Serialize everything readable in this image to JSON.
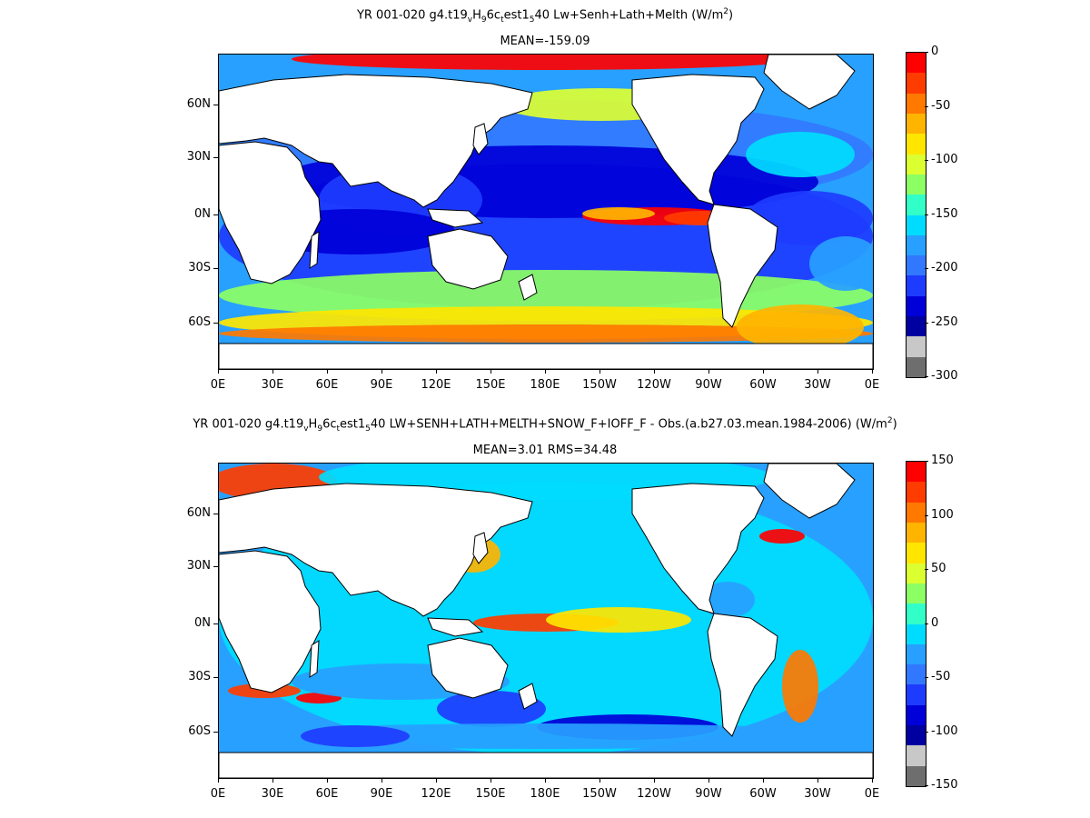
{
  "panel1": {
    "title_parts": [
      "YR 001-020 g4.t19",
      "v",
      "H",
      "9",
      "6c",
      "t",
      "est1",
      "5",
      "40 Lw+Senh+Lath+Melth (W/m",
      "2",
      ")"
    ],
    "mean_text": "MEAN=-159.09",
    "colorbar": {
      "colors": [
        "#6e6e6e",
        "#c8c8c8",
        "#0000a0",
        "#0000d8",
        "#1e3cff",
        "#3278ff",
        "#28a0ff",
        "#00dcff",
        "#32ffc8",
        "#8cff64",
        "#dcff32",
        "#ffe600",
        "#ffb400",
        "#ff7800",
        "#ff3c00",
        "#ff0000"
      ],
      "labels": [
        "0",
        "-50",
        "-100",
        "-150",
        "-200",
        "-250",
        "-300"
      ]
    }
  },
  "panel2": {
    "title_parts": [
      "YR 001-020 g4.t19",
      "v",
      "H",
      "9",
      "6c",
      "t",
      "est1",
      "5",
      "40 LW+SENH+LATH+MELTH+SNOW_F+IOFF_F - Obs.(a.b27.03.mean.1984-2006) (W/m",
      "2",
      ")"
    ],
    "mean_text": "MEAN=3.01 RMS=34.48",
    "colorbar": {
      "colors": [
        "#6e6e6e",
        "#c8c8c8",
        "#0000a0",
        "#0000d8",
        "#1e3cff",
        "#3278ff",
        "#28a0ff",
        "#00dcff",
        "#32ffc8",
        "#8cff64",
        "#dcff32",
        "#ffe600",
        "#ffb400",
        "#ff7800",
        "#ff3c00",
        "#ff0000"
      ],
      "labels": [
        "150",
        "100",
        "50",
        "0",
        "-50",
        "-100",
        "-150"
      ]
    }
  },
  "axes": {
    "lat_labels": [
      "60N",
      "30N",
      "0N",
      "30S",
      "60S"
    ],
    "lon_labels": [
      "0E",
      "30E",
      "60E",
      "90E",
      "120E",
      "150E",
      "180E",
      "150W",
      "120W",
      "90W",
      "60W",
      "30W",
      "0E"
    ]
  },
  "map_colors": {
    "land": "#ffffff",
    "coast": "#000000"
  }
}
